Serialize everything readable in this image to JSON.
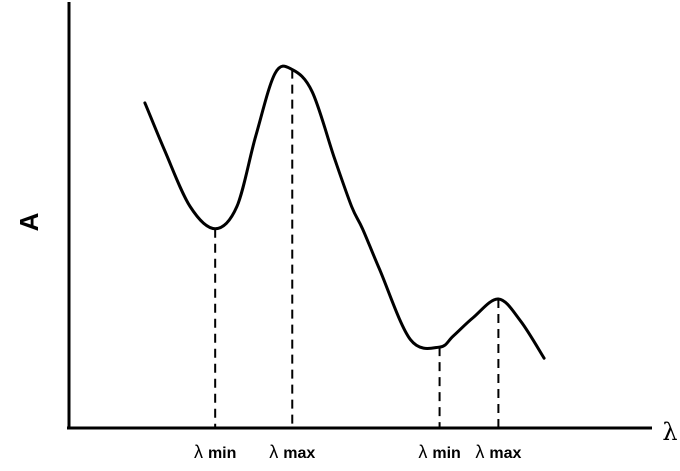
{
  "chart_data": {
    "type": "line",
    "title": "",
    "xlabel": "λ",
    "ylabel": "A",
    "grid": false,
    "legend": "none",
    "xlim": [
      0,
      100
    ],
    "ylim": [
      0,
      100
    ],
    "series": [
      {
        "x": [
          13.3,
          16.8,
          21.2,
          25.6,
          29.4,
          32.7,
          36.1,
          39.1,
          42.6,
          46.5,
          49.5,
          51.4,
          54.4,
          59.8,
          64.9,
          67.3,
          70.8,
          75.2,
          79.1,
          83.2
        ],
        "values": [
          83,
          70,
          55,
          49,
          55,
          74,
          91,
          92,
          86,
          68,
          55,
          49,
          38,
          19,
          17,
          20,
          25,
          30,
          24,
          14
        ]
      }
    ],
    "markers": [
      {
        "label": "λ min",
        "x": 25.6,
        "y": 49
      },
      {
        "label": "λ max",
        "x": 39.1,
        "y": 92
      },
      {
        "label": "λ min",
        "x": 64.9,
        "y": 17
      },
      {
        "label": "λ max",
        "x": 75.2,
        "y": 30
      }
    ]
  },
  "colors": {
    "line": "#000000",
    "background": "#ffffff"
  }
}
